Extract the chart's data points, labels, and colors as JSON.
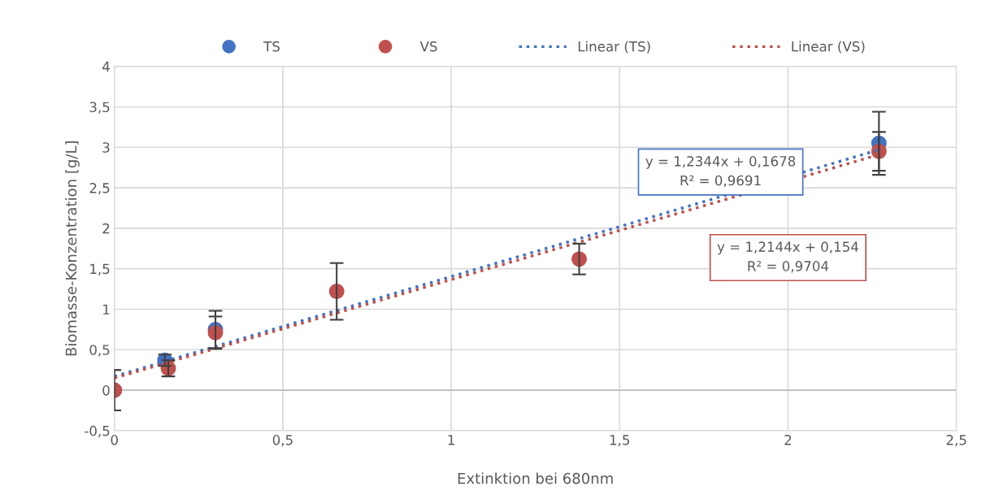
{
  "chart_data": {
    "type": "scatter",
    "xlabel": "Extinktion bei 680nm",
    "ylabel": "Biomasse-Konzentration [g/L]",
    "xlim": [
      0,
      2.5
    ],
    "xticks": [
      {
        "value": 0,
        "label": "0"
      },
      {
        "value": 0.5,
        "label": "0,5"
      },
      {
        "value": 1,
        "label": "1"
      },
      {
        "value": 1.5,
        "label": "1,5"
      },
      {
        "value": 2,
        "label": "2"
      },
      {
        "value": 2.5,
        "label": "2,5"
      }
    ],
    "ylim": [
      -0.5,
      4
    ],
    "yticks": [
      {
        "value": -0.5,
        "label": "-0,5"
      },
      {
        "value": 0,
        "label": "0"
      },
      {
        "value": 0.5,
        "label": "0,5"
      },
      {
        "value": 1,
        "label": "1"
      },
      {
        "value": 1.5,
        "label": "1,5"
      },
      {
        "value": 2,
        "label": "2"
      },
      {
        "value": 2.5,
        "label": "2,5"
      },
      {
        "value": 3,
        "label": "3"
      },
      {
        "value": 3.5,
        "label": "3,5"
      },
      {
        "value": 4,
        "label": "4"
      }
    ],
    "grid": true,
    "legend": "top",
    "series": [
      {
        "name": "TS",
        "marker": "circle",
        "color": "#4472c4",
        "x": [
          0,
          0.15,
          0.3,
          0.66,
          1.38,
          2.27
        ],
        "values": [
          0,
          0.37,
          0.75,
          null,
          null,
          3.05
        ],
        "errors": [
          0.25,
          0.07,
          0.23,
          null,
          null,
          0.39
        ]
      },
      {
        "name": "VS",
        "marker": "circle",
        "color": "#c0504d",
        "x": [
          0,
          0.16,
          0.3,
          0.66,
          1.38,
          2.27
        ],
        "values": [
          0,
          0.27,
          0.71,
          1.22,
          1.62,
          2.95
        ],
        "errors": [
          0.25,
          0.1,
          0.2,
          0.35,
          0.19,
          0.24
        ]
      },
      {
        "name": "Linear (TS)",
        "type": "line",
        "marker": "none",
        "line_style": "dotted",
        "color": "#4472c4",
        "x": [
          0,
          2.27
        ],
        "values": [
          0.17,
          2.97
        ]
      },
      {
        "name": "Linear (VS)",
        "type": "line",
        "marker": "none",
        "line_style": "dotted",
        "color": "#c0504d",
        "x": [
          0,
          2.27
        ],
        "values": [
          0.15,
          2.91
        ]
      }
    ],
    "annotations": [
      "y = 1,2344x + 0,1678\nR² = 0,9691",
      "y = 1,2144x + 0,154\nR² = 0,9704"
    ]
  }
}
